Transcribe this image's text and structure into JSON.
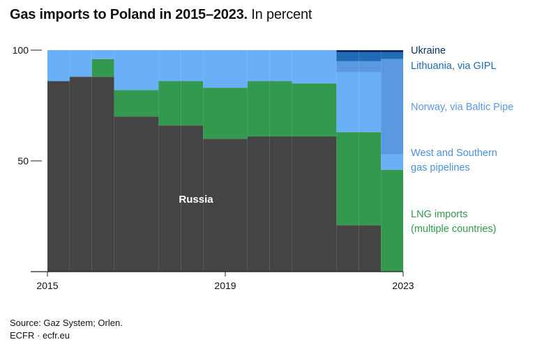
{
  "title_bold": "Gas imports to Poland in 2015–2023.",
  "title_rest": " In percent",
  "source": "Source: Gaz System; Orlen.",
  "credit": "ECFR · ecfr.eu",
  "colors": {
    "Russia": "#444444",
    "LNG imports (multiple countries)": "#33994f",
    "West and Southern gas pipelines": "#6ab0f8",
    "Norway, via Baltic Pipe": "#5a98e2",
    "Lithuania, via GIPL": "#1f6bb5",
    "Ukraine": "#0d2f66",
    "axis": "#222222",
    "text": "#111111"
  },
  "chart_data": {
    "type": "area",
    "x": [
      2015,
      2015.5,
      2016,
      2016.5,
      2017,
      2017.5,
      2018,
      2018.5,
      2019,
      2019.5,
      2020,
      2020.5,
      2021,
      2021.5,
      2022,
      2022.5
    ],
    "x_end": 2023,
    "xlim": [
      2015,
      2023
    ],
    "xticks": [
      2015,
      2019,
      2023
    ],
    "ylim": [
      0,
      100
    ],
    "yticks": [
      50,
      100
    ],
    "stack_order": [
      "Russia",
      "LNG imports (multiple countries)",
      "West and Southern gas pipelines",
      "Norway, via Baltic Pipe",
      "Lithuania, via GIPL",
      "Ukraine"
    ],
    "series": [
      {
        "name": "Russia",
        "values": [
          86,
          88,
          88,
          70,
          70,
          66,
          66,
          60,
          60,
          61,
          61,
          61,
          61,
          21,
          21,
          0
        ],
        "label": "Russia"
      },
      {
        "name": "LNG imports (multiple countries)",
        "values": [
          0,
          0,
          8,
          12,
          12,
          20,
          20,
          23,
          23,
          25,
          25,
          24,
          24,
          42,
          42,
          46
        ]
      },
      {
        "name": "West and Southern gas pipelines",
        "values": [
          14,
          12,
          4,
          18,
          18,
          14,
          14,
          17,
          17,
          14,
          14,
          15,
          15,
          27,
          27,
          7
        ]
      },
      {
        "name": "Norway, via Baltic Pipe",
        "values": [
          0,
          0,
          0,
          0,
          0,
          0,
          0,
          0,
          0,
          0,
          0,
          0,
          0,
          5,
          5,
          43
        ]
      },
      {
        "name": "Lithuania, via GIPL",
        "values": [
          0,
          0,
          0,
          0,
          0,
          0,
          0,
          0,
          0,
          0,
          0,
          0,
          0,
          4,
          4,
          3
        ]
      },
      {
        "name": "Ukraine",
        "values": [
          0,
          0,
          0,
          0,
          0,
          0,
          0,
          0,
          0,
          0,
          0,
          0,
          0,
          1,
          1,
          1
        ]
      }
    ],
    "legend": [
      {
        "lines": [
          "Ukraine"
        ],
        "color": "#0d2f66"
      },
      {
        "lines": [
          "Lithuania, via GIPL"
        ],
        "color": "#1f6bb5"
      },
      {
        "lines": [
          "Norway, via Baltic Pipe"
        ],
        "color": "#5a98e2"
      },
      {
        "lines": [
          "West and Southern",
          "gas pipelines"
        ],
        "color": "#4a90e2"
      },
      {
        "lines": [
          "LNG imports",
          "(multiple countries)"
        ],
        "color": "#33994f"
      }
    ],
    "legend_placement": "right"
  }
}
